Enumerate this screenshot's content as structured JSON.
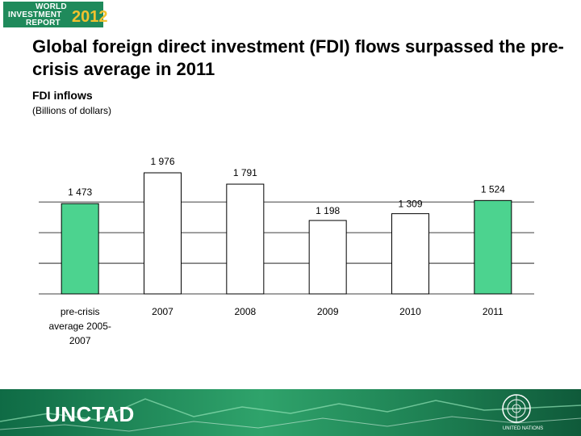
{
  "header": {
    "logo_line1": "WORLD",
    "logo_line2": "INVESTMENT",
    "logo_line3": "REPORT",
    "logo_year": "2012"
  },
  "title": "Global foreign direct investment (FDI) flows surpassed the pre-crisis average in 2011",
  "subtitle": "FDI inflows",
  "unit": "(Billions of dollars)",
  "footer": {
    "org_name": "UNCTAD",
    "un_name": "UNITED NATIONS"
  },
  "colors": {
    "highlight_bar": "#4cd38f",
    "plain_bar": "#ffffff",
    "footer_green": "#2fa36b"
  },
  "chart_data": {
    "type": "bar",
    "categories": [
      "pre-crisis average 2005-2007",
      "2007",
      "2008",
      "2009",
      "2010",
      "2011"
    ],
    "values": [
      1473,
      1976,
      1791,
      1198,
      1309,
      1524
    ],
    "value_labels": [
      "1 473",
      "1 976",
      "1 791",
      "1 198",
      "1 309",
      "1 524"
    ],
    "highlighted": [
      true,
      false,
      false,
      false,
      false,
      true
    ],
    "title": "",
    "xlabel": "",
    "ylabel": "",
    "ylim": [
      0,
      2000
    ],
    "grid": true
  }
}
